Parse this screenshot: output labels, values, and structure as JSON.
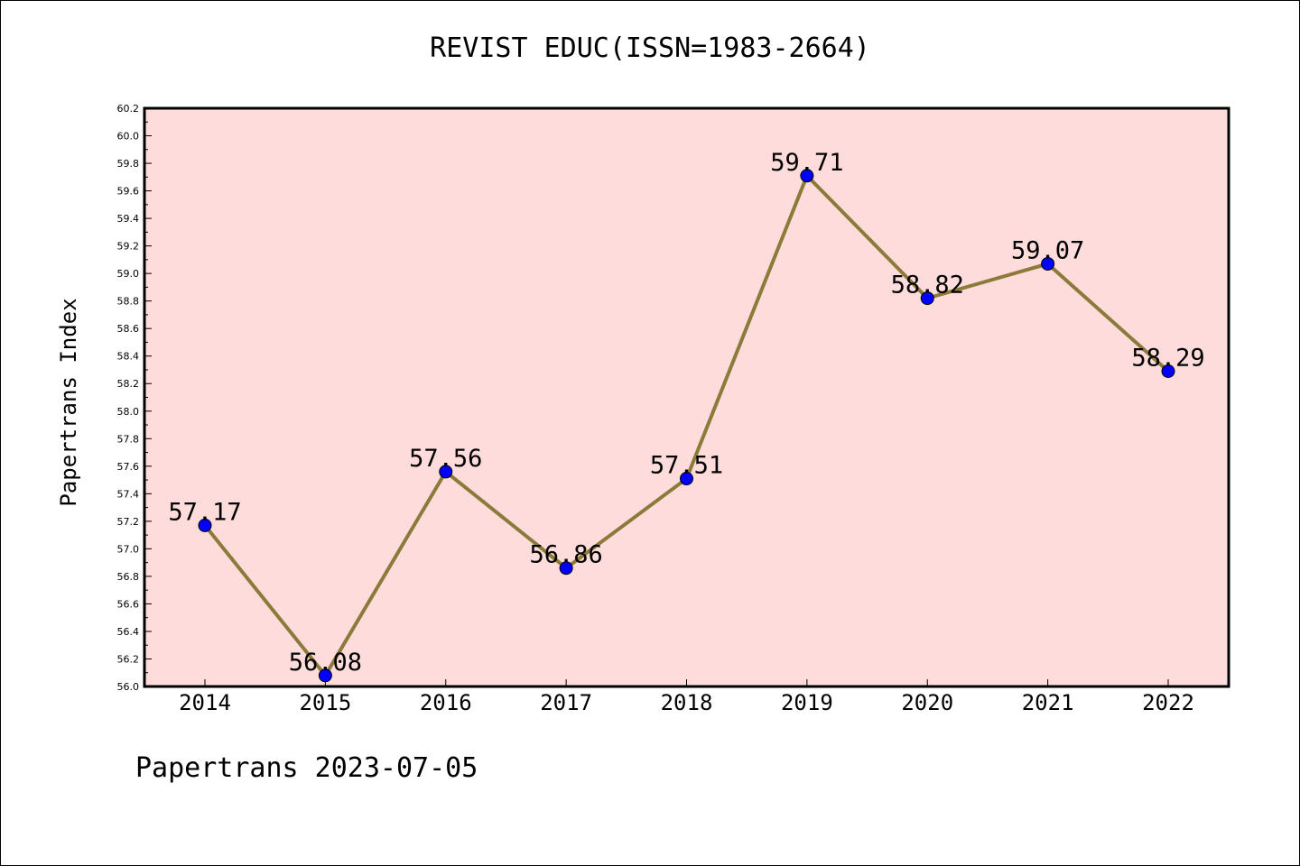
{
  "chart_data": {
    "type": "line",
    "title": "REVIST EDUC(ISSN=1983-2664)",
    "xlabel": "",
    "ylabel": "Papertrans Index",
    "categories": [
      "2014",
      "2015",
      "2016",
      "2017",
      "2018",
      "2019",
      "2020",
      "2021",
      "2022"
    ],
    "values": [
      57.17,
      56.08,
      57.56,
      56.86,
      57.51,
      59.71,
      58.82,
      59.07,
      58.29
    ],
    "data_labels": [
      "57.17",
      "56.08",
      "57.56",
      "56.86",
      "57.51",
      "59.71",
      "58.82",
      "59.07",
      "58.29"
    ],
    "ylim": [
      56.0,
      60.2
    ],
    "y_ticks": [
      "56.0",
      "56.2",
      "56.4",
      "56.6",
      "56.8",
      "57.0",
      "57.2",
      "57.4",
      "57.6",
      "57.8",
      "58.0",
      "58.2",
      "58.4",
      "58.6",
      "58.8",
      "59.0",
      "59.2",
      "59.4",
      "59.6",
      "59.8",
      "60.0",
      "60.2"
    ],
    "grid": false,
    "legend": "none",
    "colors": {
      "plot_background": "#fddcdb",
      "line": "#8b7a3a",
      "marker": "#0000ff",
      "axis": "#000000"
    }
  },
  "footer": "Papertrans 2023-07-05"
}
